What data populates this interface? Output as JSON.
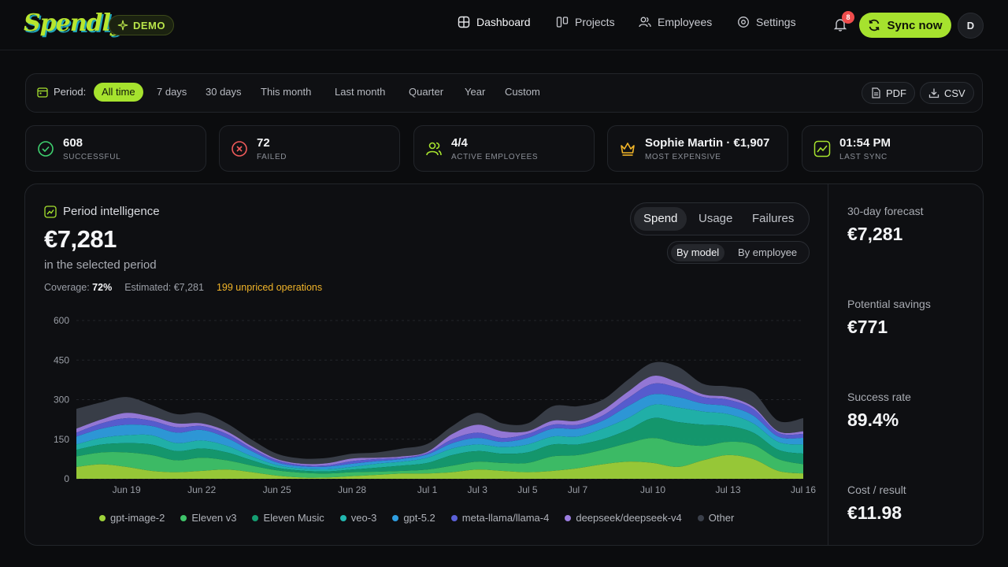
{
  "brand": {
    "logo_text": "Spendly",
    "badge": "DEMO",
    "accent": "#a6e22e"
  },
  "nav": [
    {
      "label": "Dashboard",
      "icon": "dashboard-icon",
      "active": true
    },
    {
      "label": "Projects",
      "icon": "projects-icon"
    },
    {
      "label": "Employees",
      "icon": "employees-icon"
    },
    {
      "label": "Settings",
      "icon": "settings-icon"
    }
  ],
  "notifications": {
    "count": "8"
  },
  "sync_button": "Sync now",
  "avatar_initial": "D",
  "period": {
    "label": "Period:",
    "options": [
      "All time",
      "7 days",
      "30 days",
      "This month",
      "Last month",
      "Quarter",
      "Year",
      "Custom"
    ],
    "selected": "All time"
  },
  "exports": [
    "PDF",
    "CSV"
  ],
  "stats": [
    {
      "value": "608",
      "label": "Successful",
      "icon": "check-circle-icon",
      "color": "#3ecf6e"
    },
    {
      "value": "72",
      "label": "Failed",
      "icon": "x-circle-icon",
      "color": "#ef5a5a"
    },
    {
      "value": "4/4",
      "label": "Active employees",
      "icon": "users-icon",
      "color": "#a6e22e"
    },
    {
      "value": "Sophie Martin · €1,907",
      "label": "Most expensive",
      "icon": "crown-icon",
      "color": "#f0b429"
    },
    {
      "value": "01:54 PM",
      "label": "Last sync",
      "icon": "activity-icon",
      "color": "#a6e22e"
    }
  ],
  "intelligence": {
    "title": "Period intelligence",
    "amount": "€7,281",
    "subtitle": "in the selected period",
    "coverage_label": "Coverage:",
    "coverage_value": "72%",
    "estimated": "Estimated: €7,281",
    "unpriced": "199 unpriced operations",
    "tabs": [
      "Spend",
      "Usage",
      "Failures"
    ],
    "tab_selected": "Spend",
    "group_tabs": [
      "By model",
      "By employee"
    ],
    "group_selected": "By model"
  },
  "kpis": [
    {
      "label": "30-day forecast",
      "value": "€7,281"
    },
    {
      "label": "Potential savings",
      "value": "€771"
    },
    {
      "label": "Success rate",
      "value": "89.4%"
    },
    {
      "label": "Cost / result",
      "value": "€11.98"
    }
  ],
  "chart_data": {
    "type": "area",
    "stacked": true,
    "ylim": [
      0,
      600
    ],
    "yticks": [
      0,
      150,
      300,
      450,
      600
    ],
    "grid": true,
    "legend_position": "bottom",
    "xtick_labels": [
      "Jun 19",
      "Jun 22",
      "Jun 25",
      "Jun 28",
      "Jul 1",
      "Jul 3",
      "Jul 5",
      "Jul 7",
      "Jul 10",
      "Jul 13",
      "Jul 16"
    ],
    "x": [
      "Jun 17",
      "Jun 18",
      "Jun 19",
      "Jun 20",
      "Jun 21",
      "Jun 22",
      "Jun 23",
      "Jun 24",
      "Jun 25",
      "Jun 26",
      "Jun 27",
      "Jun 28",
      "Jun 29",
      "Jun 30",
      "Jul 1",
      "Jul 2",
      "Jul 3",
      "Jul 4",
      "Jul 5",
      "Jul 6",
      "Jul 7",
      "Jul 8",
      "Jul 9",
      "Jul 10",
      "Jul 11",
      "Jul 12",
      "Jul 13",
      "Jul 14",
      "Jul 15",
      "Jul 16"
    ],
    "series": [
      {
        "name": "gpt-image-2",
        "color": "#9ed23a",
        "values": [
          45,
          55,
          45,
          30,
          25,
          30,
          35,
          25,
          12,
          5,
          5,
          10,
          15,
          20,
          20,
          25,
          35,
          30,
          25,
          30,
          40,
          55,
          65,
          60,
          45,
          70,
          90,
          75,
          30,
          20
        ]
      },
      {
        "name": "Eleven v3",
        "color": "#3fc46a",
        "values": [
          40,
          45,
          55,
          60,
          45,
          50,
          35,
          25,
          20,
          18,
          15,
          15,
          12,
          10,
          15,
          25,
          30,
          30,
          35,
          55,
          50,
          55,
          70,
          95,
          90,
          55,
          50,
          55,
          45,
          35
        ]
      },
      {
        "name": "Eleven Music",
        "color": "#159e72",
        "values": [
          25,
          30,
          35,
          40,
          35,
          35,
          30,
          20,
          10,
          8,
          8,
          10,
          15,
          20,
          25,
          40,
          40,
          35,
          40,
          45,
          40,
          40,
          50,
          75,
          80,
          80,
          60,
          45,
          35,
          40
        ]
      },
      {
        "name": "veo-3",
        "color": "#22b8b0",
        "values": [
          20,
          25,
          30,
          35,
          30,
          30,
          25,
          15,
          10,
          8,
          8,
          10,
          15,
          15,
          20,
          25,
          25,
          25,
          30,
          30,
          30,
          40,
          45,
          50,
          55,
          50,
          45,
          35,
          30,
          35
        ]
      },
      {
        "name": "gpt-5.2",
        "color": "#2f9ee0",
        "values": [
          30,
          35,
          40,
          35,
          40,
          40,
          30,
          20,
          10,
          8,
          10,
          12,
          10,
          10,
          12,
          20,
          25,
          20,
          25,
          30,
          30,
          30,
          45,
          40,
          40,
          30,
          30,
          30,
          20,
          25
        ]
      },
      {
        "name": "meta-llama/llama-4",
        "color": "#5b60d8",
        "values": [
          15,
          20,
          25,
          20,
          20,
          15,
          15,
          10,
          8,
          5,
          5,
          10,
          8,
          5,
          5,
          15,
          20,
          15,
          15,
          15,
          15,
          20,
          30,
          40,
          35,
          25,
          25,
          25,
          15,
          15
        ]
      },
      {
        "name": "deepseek/deepseek-v4",
        "color": "#9b7de0",
        "values": [
          15,
          15,
          20,
          15,
          15,
          10,
          10,
          8,
          5,
          5,
          8,
          10,
          5,
          5,
          5,
          20,
          30,
          25,
          10,
          15,
          15,
          20,
          25,
          30,
          20,
          10,
          10,
          8,
          5,
          10
        ]
      },
      {
        "name": "Other",
        "color": "#3b404b",
        "values": [
          75,
          65,
          60,
          45,
          35,
          40,
          30,
          25,
          20,
          20,
          20,
          18,
          20,
          30,
          30,
          30,
          45,
          30,
          30,
          55,
          55,
          40,
          45,
          50,
          60,
          40,
          40,
          55,
          40,
          50
        ]
      }
    ]
  }
}
